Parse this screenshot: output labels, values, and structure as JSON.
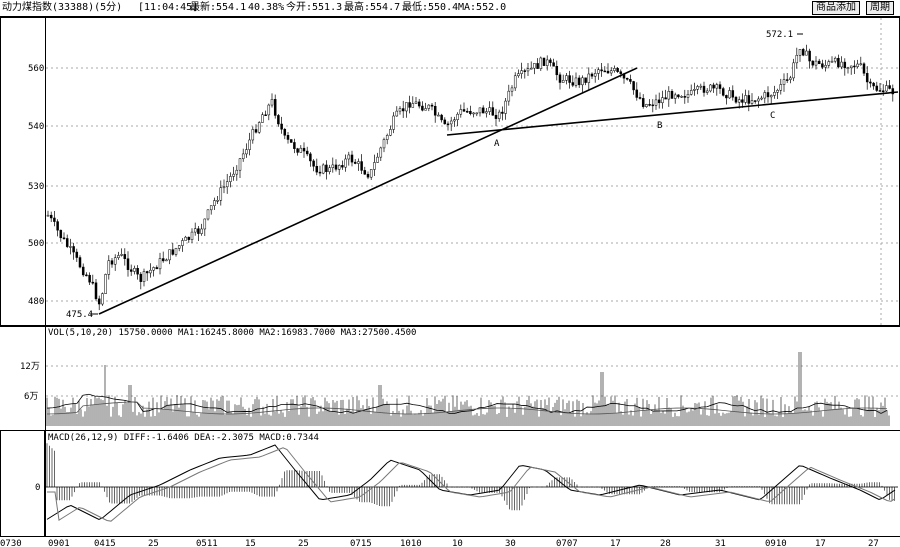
{
  "header": {
    "title": "动力煤指数(33388)(5分)",
    "time": "[11:04:45]",
    "latest": "最新:554.1",
    "change": "40.38%",
    "today_open": "今开:551.3",
    "high": "最高:554.7",
    "low": "最低:550.4",
    "ma": "MA:552.0",
    "button_add": "商品添加",
    "button_period": "周期"
  },
  "chart_data": {
    "type": "candlestick",
    "price_axis": {
      "ticks": [
        "560",
        "540",
        "530",
        "500",
        "480"
      ]
    },
    "annotations": {
      "high_label": "572.1",
      "low_label": "475.4",
      "points": [
        "A",
        "B",
        "C"
      ]
    },
    "volume": {
      "label": "VOL(5,10,20) 15750.0000 MA1:16245.8000 MA2:16983.7000 MA3:27500.4500",
      "ticks": [
        "12万",
        "6万"
      ]
    },
    "macd": {
      "label": "MACD(26,12,9) DIFF:-1.6406 DEA:-2.3075 MACD:0.7344",
      "ticks": [
        "0"
      ]
    },
    "x_ticks": [
      "0901",
      "0415",
      "25",
      "0511",
      "15",
      "25",
      "0715",
      "1010",
      "10",
      "30",
      "0707",
      "17",
      "28",
      "31",
      "0910",
      "17",
      "27"
    ],
    "bottom_left_label": "0730"
  }
}
